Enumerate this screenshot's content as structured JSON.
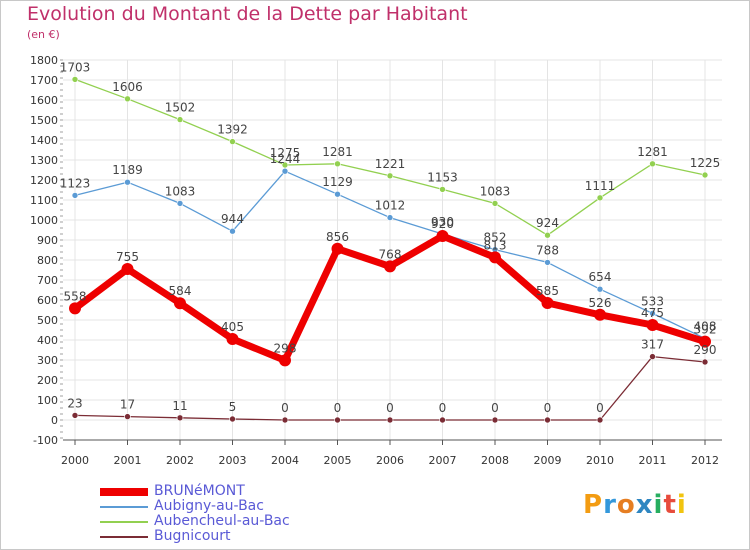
{
  "title": "Evolution du Montant de la Dette par Habitant",
  "unit": "(en €)",
  "logo": {
    "text": "Proxiti",
    "colors": [
      "#f39c12",
      "#3498db",
      "#e67e22",
      "#2e86c1",
      "#27ae60",
      "#e74c3c",
      "#f1c40f"
    ]
  },
  "chart_data": {
    "type": "line",
    "x": [
      "2000",
      "2001",
      "2002",
      "2003",
      "2004",
      "2005",
      "2006",
      "2007",
      "2008",
      "2009",
      "2010",
      "2011",
      "2012"
    ],
    "ylim": [
      -100,
      1800
    ],
    "yticks": [
      -100,
      0,
      100,
      200,
      300,
      400,
      500,
      600,
      700,
      800,
      900,
      1000,
      1100,
      1200,
      1300,
      1400,
      1500,
      1600,
      1700,
      1800
    ],
    "grid": true,
    "legend_position": "bottom-left",
    "series": [
      {
        "name": "BRUNéMONT",
        "color": "#ee0000",
        "width": 7,
        "marker": 6,
        "values": [
          558,
          755,
          584,
          405,
          298,
          856,
          768,
          920,
          813,
          585,
          526,
          475,
          392
        ],
        "labels": [
          "558",
          "755",
          "584",
          "405",
          "298",
          "856",
          "768",
          "920",
          "813",
          "585",
          "526",
          "475",
          "392"
        ]
      },
      {
        "name": "Aubigny-au-Bac",
        "color": "#5b9bd5",
        "width": 1.3,
        "marker": 3,
        "values": [
          1123,
          1189,
          1083,
          944,
          1244,
          1129,
          1012,
          930,
          852,
          788,
          654,
          533,
          408
        ],
        "labels": [
          "1123",
          "1189",
          "1083",
          "944",
          "1244",
          "1129",
          "1012",
          "930",
          "852",
          "788",
          "654",
          "533",
          "408"
        ]
      },
      {
        "name": "Aubencheul-au-Bac",
        "color": "#92d050",
        "width": 1.3,
        "marker": 3,
        "values": [
          1703,
          1606,
          1502,
          1392,
          1275,
          1281,
          1221,
          1153,
          1083,
          924,
          1111,
          1281,
          1225
        ],
        "labels": [
          "1703",
          "1606",
          "1502",
          "1392",
          "1275",
          "1281",
          "1221",
          "1153",
          "1083",
          "924",
          "1111",
          "1281",
          "1225"
        ]
      },
      {
        "name": "Bugnicourt",
        "color": "#7b2c35",
        "width": 1.3,
        "marker": 3,
        "values": [
          23,
          17,
          11,
          5,
          0,
          0,
          0,
          0,
          0,
          0,
          0,
          317,
          290
        ],
        "labels": [
          "23",
          "17",
          "11",
          "5",
          "0",
          "0",
          "0",
          "0",
          "0",
          "0",
          "0",
          "317",
          "290"
        ]
      }
    ]
  }
}
